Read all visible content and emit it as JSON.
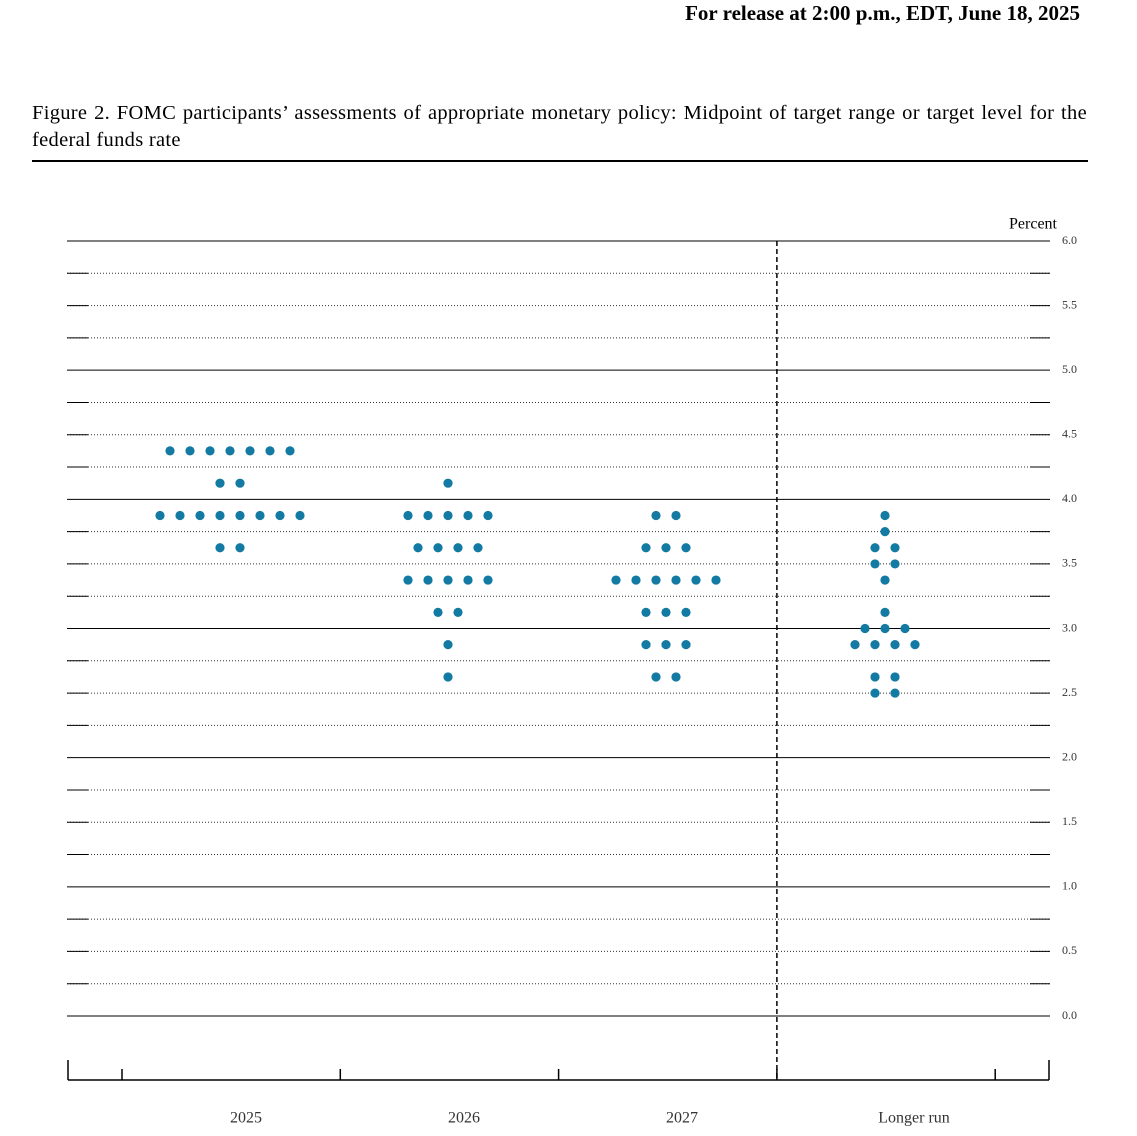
{
  "header": {
    "release": "For release at 2:00 p.m., EDT, June 18, 2025"
  },
  "chart_data": {
    "type": "dot",
    "title": "Figure 2.  FOMC participants’ assessments of appropriate monetary policy:  Midpoint of target range or target level for the federal funds rate",
    "y_label": "Percent",
    "color": "#137aa3",
    "categories": [
      "2025",
      "2026",
      "2027",
      "Longer run"
    ],
    "values": [
      [
        4.375,
        4.375,
        4.375,
        4.375,
        4.375,
        4.375,
        4.375,
        4.125,
        4.125,
        3.875,
        3.875,
        3.875,
        3.875,
        3.875,
        3.875,
        3.875,
        3.875,
        3.625,
        3.625
      ],
      [
        4.125,
        3.875,
        3.875,
        3.875,
        3.875,
        3.875,
        3.625,
        3.625,
        3.625,
        3.625,
        3.375,
        3.375,
        3.375,
        3.375,
        3.375,
        3.125,
        3.125,
        2.875,
        2.625
      ],
      [
        3.875,
        3.875,
        3.625,
        3.625,
        3.625,
        3.375,
        3.375,
        3.375,
        3.375,
        3.375,
        3.375,
        3.125,
        3.125,
        3.125,
        2.875,
        2.875,
        2.875,
        2.625,
        2.625
      ],
      [
        3.875,
        3.75,
        3.625,
        3.625,
        3.5,
        3.5,
        3.375,
        3.125,
        3.0,
        3.0,
        3.0,
        2.875,
        2.875,
        2.875,
        2.875,
        2.625,
        2.625,
        2.5,
        2.5
      ]
    ],
    "ylim": [
      0,
      6
    ],
    "yticks": [
      {
        "value": 0,
        "label": "0.0"
      },
      0.5,
      {
        "value": 1,
        "label": "1.0"
      },
      1.5,
      {
        "value": 2,
        "label": "2.0"
      },
      2.5,
      {
        "value": 3,
        "label": "3.0"
      },
      3.5,
      {
        "value": 4,
        "label": "4.0"
      },
      4.5,
      {
        "value": 5,
        "label": "5.0"
      },
      5.5,
      {
        "value": 6,
        "label": "6.0"
      }
    ],
    "minor_yticks": [
      0.25,
      0.75,
      1.25,
      1.75,
      2.25,
      2.75,
      3.25,
      3.75,
      4.25,
      4.75,
      5.25,
      5.75
    ],
    "separator_before": "Longer run",
    "grid": true
  }
}
